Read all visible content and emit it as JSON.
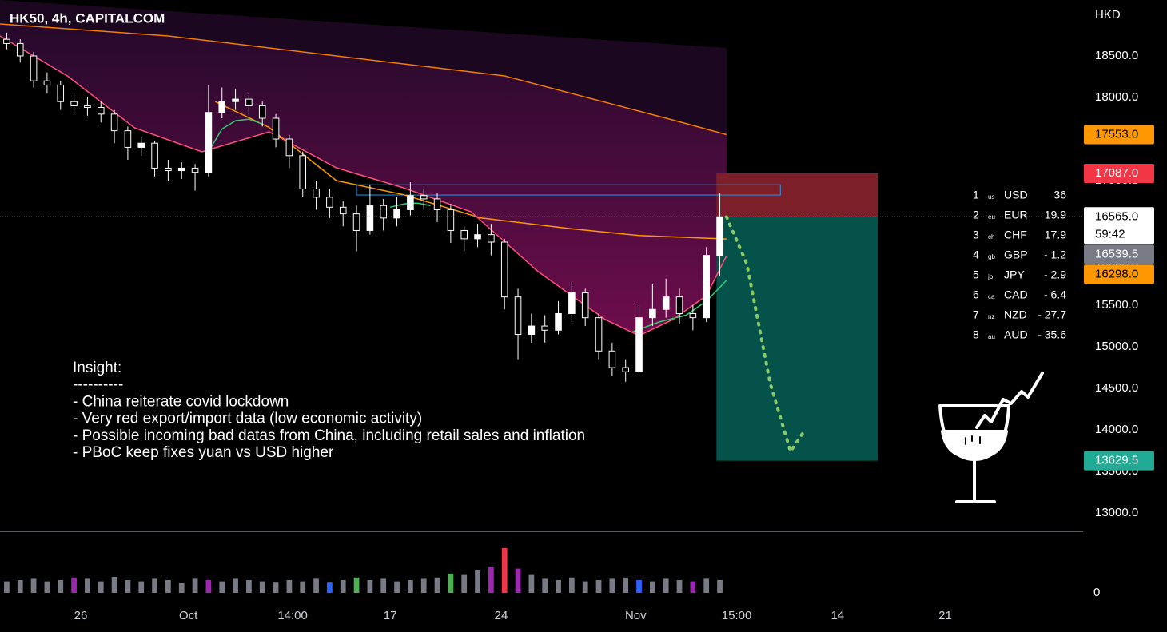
{
  "chart_data": {
    "type": "candlestick",
    "title": "HK50, 4h, CAPITALCOM",
    "currency": "HKD",
    "xlim": [
      0,
      322
    ],
    "ylim": [
      12780,
      19173
    ],
    "xticks": [
      {
        "value": 24,
        "label": "26"
      },
      {
        "value": 56,
        "label": "Oct"
      },
      {
        "value": 87,
        "label": "14:00"
      },
      {
        "value": 116,
        "label": "17"
      },
      {
        "value": 149,
        "label": "24"
      },
      {
        "value": 189,
        "label": "Nov"
      },
      {
        "value": 219,
        "label": "15:00"
      },
      {
        "value": 249,
        "label": "14"
      },
      {
        "value": 281,
        "label": "21"
      }
    ],
    "yticks": [
      {
        "value": 13000,
        "label": "13000.0"
      },
      {
        "value": 13500,
        "label": "13500.0"
      },
      {
        "value": 14000,
        "label": "14000.0"
      },
      {
        "value": 14500,
        "label": "14500.0"
      },
      {
        "value": 15000,
        "label": "15000.0"
      },
      {
        "value": 15500,
        "label": "15500.0"
      },
      {
        "value": 16000,
        "label": "16000.0"
      },
      {
        "value": 16500,
        "label": "16500.0"
      },
      {
        "value": 17000,
        "label": "17000.0"
      },
      {
        "value": 17500,
        "label": "17500.0"
      },
      {
        "value": 18000,
        "label": "18000.0"
      },
      {
        "value": 18500,
        "label": "18500.0"
      }
    ],
    "up_color": "#ffffff",
    "down_color": "#000000",
    "wick_color": "#ffffff",
    "x": [
      2,
      6,
      10,
      14,
      18,
      22,
      26,
      30,
      34,
      38,
      42,
      46,
      50,
      54,
      58,
      62,
      66,
      70,
      74,
      78,
      82,
      86,
      90,
      94,
      98,
      102,
      106,
      110,
      114,
      118,
      122,
      126,
      130,
      134,
      138,
      142,
      146,
      150,
      154,
      158,
      162,
      166,
      170,
      174,
      178,
      182,
      186,
      190,
      194,
      198,
      202,
      206,
      210,
      214
    ],
    "open": [
      18700,
      18650,
      18500,
      18200,
      18150,
      17950,
      17900,
      17880,
      17800,
      17600,
      17400,
      17450,
      17150,
      17120,
      17150,
      17100,
      17820,
      17950,
      17980,
      17900,
      17750,
      17500,
      17300,
      16900,
      16800,
      16680,
      16600,
      16400,
      16700,
      16550,
      16650,
      16820,
      16780,
      16650,
      16400,
      16300,
      16350,
      16260,
      15600,
      15150,
      15250,
      15200,
      15400,
      15650,
      15350,
      14950,
      14750,
      14700,
      15350,
      15450,
      15600,
      15400,
      15350,
      16100
    ],
    "high": [
      18780,
      18700,
      18550,
      18300,
      18200,
      18050,
      18000,
      17950,
      17850,
      17650,
      17520,
      17480,
      17250,
      17220,
      17200,
      18150,
      18120,
      18100,
      18050,
      17950,
      17800,
      17550,
      17350,
      17000,
      16900,
      16750,
      16700,
      16950,
      16780,
      16800,
      16980,
      16900,
      16850,
      16720,
      16450,
      16480,
      16480,
      16300,
      15700,
      15400,
      15380,
      15550,
      15780,
      15700,
      15400,
      15050,
      14850,
      15500,
      15750,
      15820,
      15700,
      15500,
      16200,
      16850
    ],
    "low": [
      18580,
      18420,
      18120,
      18050,
      17850,
      17800,
      17780,
      17700,
      17450,
      17250,
      17300,
      17050,
      17000,
      17020,
      16880,
      17050,
      17750,
      17850,
      17800,
      17650,
      17400,
      17150,
      16800,
      16650,
      16550,
      16450,
      16150,
      16350,
      16400,
      16450,
      16580,
      16650,
      16500,
      16250,
      16150,
      16200,
      16100,
      15450,
      14850,
      15050,
      15050,
      15150,
      15300,
      15250,
      14850,
      14650,
      14580,
      14650,
      15250,
      15350,
      15280,
      15200,
      15300,
      15850
    ],
    "close": [
      18650,
      18500,
      18200,
      18150,
      17950,
      17900,
      17880,
      17800,
      17600,
      17400,
      17450,
      17150,
      17120,
      17150,
      17100,
      17820,
      17950,
      17980,
      17900,
      17750,
      17500,
      17300,
      16900,
      16800,
      16680,
      16600,
      16400,
      16700,
      16550,
      16650,
      16820,
      16780,
      16650,
      16400,
      16300,
      16350,
      16260,
      15600,
      15150,
      15250,
      15200,
      15400,
      15650,
      15350,
      14950,
      14750,
      14700,
      15350,
      15450,
      15600,
      15400,
      15350,
      16100,
      16565
    ],
    "lines": [
      {
        "color": "#f57c00",
        "x": [
          0,
          50,
          100,
          150,
          200,
          216
        ],
        "values": [
          18885,
          18740,
          18500,
          18260,
          17730,
          17553
        ]
      },
      {
        "color": "#ff9800",
        "x": [
          64,
          80,
          100,
          120,
          143,
          170,
          190,
          216
        ],
        "values": [
          17950,
          17640,
          17000,
          16830,
          16550,
          16420,
          16340,
          16298
        ]
      },
      {
        "color": "#ff4f7b",
        "x": [
          0,
          20,
          40,
          60,
          80,
          100,
          120,
          140,
          160,
          180,
          190,
          200,
          210,
          216
        ],
        "values": [
          18740,
          18260,
          17635,
          17346,
          17587,
          17154,
          16913,
          16625,
          15904,
          15327,
          15135,
          15327,
          15615,
          16096
        ]
      },
      {
        "color": "#2ecc71",
        "x": [
          62,
          66,
          70,
          74,
          78,
          100,
          116,
          120,
          124,
          128,
          150,
          188,
          196,
          204,
          210,
          216
        ],
        "values": [
          17350,
          17620,
          17720,
          17740,
          17680,
          null,
          16680,
          16720,
          16730,
          16700,
          null,
          15180,
          15300,
          15380,
          15550,
          15800
        ]
      }
    ],
    "volume": {
      "ylim": [
        0,
        100
      ],
      "yticks": [
        0
      ],
      "values": [
        18,
        20,
        22,
        18,
        20,
        24,
        22,
        18,
        25,
        20,
        18,
        22,
        20,
        15,
        22,
        20,
        18,
        22,
        20,
        18,
        16,
        20,
        18,
        22,
        16,
        20,
        24,
        20,
        22,
        18,
        20,
        22,
        24,
        30,
        28,
        35,
        40,
        70,
        38,
        28,
        22,
        20,
        24,
        18,
        20,
        22,
        24,
        20,
        18,
        22,
        20,
        18,
        22,
        20
      ],
      "colors": [
        "#787b86",
        "#787b86",
        "#787b86",
        "#787b86",
        "#787b86",
        "#9c27b0",
        "#787b86",
        "#787b86",
        "#787b86",
        "#787b86",
        "#787b86",
        "#787b86",
        "#787b86",
        "#787b86",
        "#787b86",
        "#9c27b0",
        "#787b86",
        "#787b86",
        "#787b86",
        "#787b86",
        "#787b86",
        "#787b86",
        "#787b86",
        "#787b86",
        "#2962ff",
        "#787b86",
        "#4caf50",
        "#787b86",
        "#787b86",
        "#787b86",
        "#787b86",
        "#787b86",
        "#787b86",
        "#4caf50",
        "#787b86",
        "#787b86",
        "#9c27b0",
        "#f23645",
        "#9c27b0",
        "#787b86",
        "#787b86",
        "#787b86",
        "#787b86",
        "#787b86",
        "#787b86",
        "#787b86",
        "#787b86",
        "#2962ff",
        "#787b86",
        "#787b86",
        "#787b86",
        "#9c27b0",
        "#787b86",
        "#787b86"
      ]
    },
    "price_labels": [
      {
        "value": 17553,
        "label": "17553.0",
        "color": "#ff9800",
        "text_color": "#000000"
      },
      {
        "value": 17087,
        "label": "17087.0",
        "color": "#f23645",
        "text_color": "#ffffff"
      },
      {
        "value": 16565,
        "label": "16565.0",
        "sublabel": "59:42",
        "color": "#ffffff",
        "text_color": "#000000"
      },
      {
        "value": 16539.5,
        "label": "16539.5",
        "color": "#787b86",
        "text_color": "#ffffff"
      },
      {
        "value": 16298,
        "label": "16298.0",
        "color": "#ff9800",
        "text_color": "#000000"
      },
      {
        "value": 13629.5,
        "label": "13629.5",
        "color": "#22ab94",
        "text_color": "#ffffff"
      }
    ],
    "position": {
      "x": [
        213,
        261
      ],
      "stop": 17087,
      "entry": 16565,
      "target": 13629.5,
      "stop_color": "#7d1f29",
      "target_color": "#05524a"
    },
    "zone": {
      "x": [
        106,
        232
      ],
      "prices": [
        16950,
        16827
      ],
      "color": "#2196f3"
    },
    "projection": {
      "color": "#8bc968",
      "x": [
        216,
        222,
        229,
        235,
        239
      ],
      "values": [
        16565,
        16000,
        14560,
        13740,
        13980
      ]
    },
    "strength_table": {
      "rows": [
        [
          "1",
          "us",
          "USD",
          "36"
        ],
        [
          "2",
          "eu",
          "EUR",
          "19.9"
        ],
        [
          "3",
          "ch",
          "CHF",
          "17.9"
        ],
        [
          "4",
          "gb",
          "GBP",
          "- 1.2"
        ],
        [
          "5",
          "jp",
          "JPY",
          "- 2.9"
        ],
        [
          "6",
          "ca",
          "CAD",
          "- 6.4"
        ],
        [
          "7",
          "nz",
          "NZD",
          "- 27.7"
        ],
        [
          "8",
          "au",
          "AUD",
          "- 35.6"
        ]
      ]
    },
    "annotation": {
      "lines": [
        "Insight:",
        "----------",
        "- China reiterate covid lockdown",
        "- Very red export/import data (low economic activity)",
        "- Possible incoming bad datas from China, including retail sales and inflation",
        "- PBoC keep fixes yuan vs USD higher"
      ]
    }
  }
}
